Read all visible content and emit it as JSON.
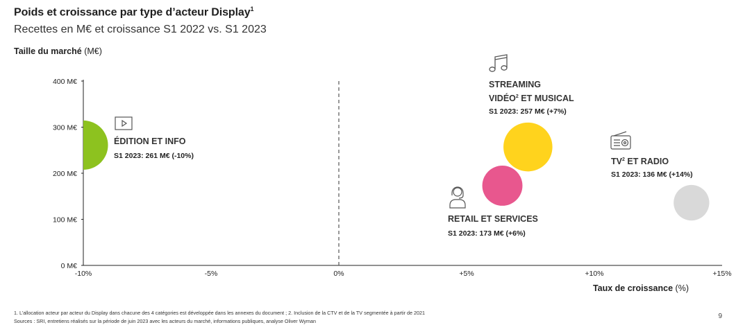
{
  "header": {
    "title": "Poids et croissance par type d’acteur Display",
    "title_sup": "1",
    "subtitle": "Recettes en M€ et croissance S1 2022 vs. S1 2023"
  },
  "axes": {
    "y_title": "Taille du marché",
    "y_unit": "(M€)",
    "x_title": "Taux de croissance",
    "x_unit": "(%)"
  },
  "chart_data": {
    "type": "scatter",
    "xlim": [
      -10,
      15
    ],
    "ylim": [
      0,
      400
    ],
    "x_ticks": [
      {
        "value": -10,
        "label": "-10%"
      },
      {
        "value": -5,
        "label": "-5%"
      },
      {
        "value": 0,
        "label": "0%"
      },
      {
        "value": 5,
        "label": "+5%"
      },
      {
        "value": 10,
        "label": "+10%"
      },
      {
        "value": 15,
        "label": "+15%"
      }
    ],
    "y_ticks": [
      {
        "value": 0,
        "label": "0 M€"
      },
      {
        "value": 100,
        "label": "100 M€"
      },
      {
        "value": 200,
        "label": "200 M€"
      },
      {
        "value": 300,
        "label": "300 M€"
      },
      {
        "value": 400,
        "label": "400 M€"
      }
    ],
    "reference_line_x": 0,
    "points": [
      {
        "id": "edition",
        "x": -10,
        "y": 261,
        "size": 261,
        "color": "#8dc21f",
        "name_lines": [
          "ÉDITION ET INFO"
        ],
        "value_prefix": "S1 2023:",
        "value_text": "261 M€ (-10%)",
        "icon": "play-icon"
      },
      {
        "id": "retail",
        "x": 6.4,
        "y": 173,
        "size": 173,
        "color": "#e8578e",
        "name_lines": [
          "RETAIL ET SERVICES"
        ],
        "value_prefix": "S1 2023:",
        "value_text": "173 M€ (+6%)",
        "icon": "headset-icon"
      },
      {
        "id": "streaming",
        "x": 7.4,
        "y": 257,
        "size": 257,
        "color": "#ffd31d",
        "name_lines": [
          "STREAMING",
          "VIDÉO",
          "2",
          " ET MUSICAL"
        ],
        "value_prefix": "S1 2023:",
        "value_text": "257 M€ (+7%)",
        "icon": "music-note-icon"
      },
      {
        "id": "tv",
        "x": 13.8,
        "y": 136,
        "size": 136,
        "color": "#d9d9d9",
        "name_lines": [
          "TV",
          "2",
          " ET RADIO"
        ],
        "value_prefix": "S1 2023:",
        "value_text": "136 M€ (+14%)",
        "icon": "radio-icon"
      }
    ]
  },
  "footer": {
    "note1": "1. L’allocation acteur par acteur du Display dans chacune des 4 catégories est développée dans les annexes du document ; 2. Inclusion de la CTV et de la TV segmentée à partir de 2021",
    "note2": "Sources : SRI, entretiens réalisés sur la période de juin 2023 avec les acteurs du marché, informations publiques, analyse Oliver Wyman",
    "page": "9"
  }
}
